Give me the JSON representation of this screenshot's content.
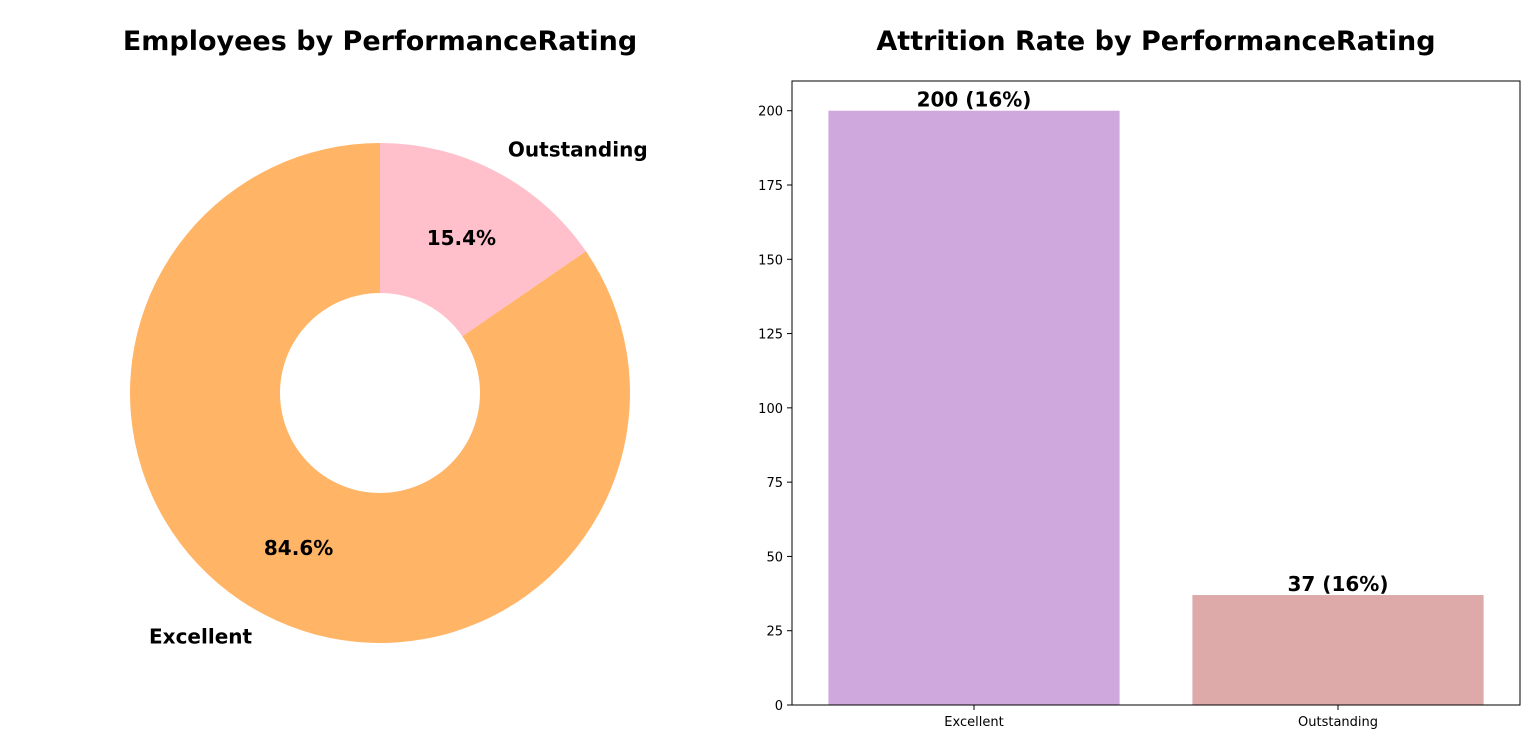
{
  "chart_data": [
    {
      "type": "pie",
      "title": "Employees by PerformanceRating",
      "donut": true,
      "slices": [
        {
          "label": "Excellent",
          "value": 84.6,
          "pct_label": "84.6%",
          "color": "#FFB466"
        },
        {
          "label": "Outstanding",
          "value": 15.4,
          "pct_label": "15.4%",
          "color": "#FFC0CB"
        }
      ]
    },
    {
      "type": "bar",
      "title": "Attrition Rate by PerformanceRating",
      "categories": [
        "Excellent",
        "Outstanding"
      ],
      "values": [
        200,
        37
      ],
      "data_labels": [
        "200 (16%)",
        "37 (16%)"
      ],
      "colors": [
        "#CFA8DE",
        "#DDAAA9"
      ],
      "xlabel": "",
      "ylabel": "",
      "ylim": [
        0,
        210
      ],
      "yticks": [
        0,
        25,
        50,
        75,
        100,
        125,
        150,
        175,
        200
      ],
      "grid": false
    }
  ]
}
